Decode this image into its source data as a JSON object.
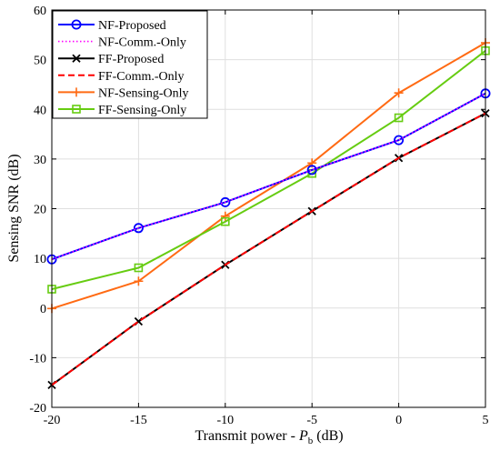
{
  "chart_data": {
    "type": "line",
    "xlabel": "Transmit power - ",
    "xlabel_symbol": "P",
    "xlabel_subscript": "b",
    "xlabel_unit": " (dB)",
    "ylabel": "Sensing SNR (dB)",
    "xlim": [
      -20,
      5
    ],
    "ylim": [
      -20,
      60
    ],
    "xticks": [
      -20,
      -15,
      -10,
      -5,
      0,
      5
    ],
    "yticks": [
      -20,
      -10,
      0,
      10,
      20,
      30,
      40,
      50,
      60
    ],
    "grid": true,
    "legend_position": "top-left",
    "x": [
      -20,
      -15,
      -10,
      -5,
      0,
      5
    ],
    "series": [
      {
        "name": "NF-Proposed",
        "color": "#0000ff",
        "dash": "solid",
        "marker": "circle",
        "values": [
          9.8,
          16.1,
          21.3,
          27.8,
          33.8,
          43.2
        ]
      },
      {
        "name": "NF-Comm.-Only",
        "color": "#ff00ff",
        "dash": "dotted",
        "marker": "none",
        "values": [
          9.8,
          16.1,
          21.3,
          27.8,
          33.8,
          43.2
        ]
      },
      {
        "name": "FF-Proposed",
        "color": "#000000",
        "dash": "solid",
        "marker": "x",
        "values": [
          -15.5,
          -2.7,
          8.7,
          19.5,
          30.2,
          39.2
        ]
      },
      {
        "name": "FF-Comm.-Only",
        "color": "#ff0000",
        "dash": "dashed",
        "marker": "none",
        "values": [
          -15.5,
          -2.7,
          8.7,
          19.5,
          30.2,
          39.2
        ]
      },
      {
        "name": "NF-Sensing-Only",
        "color": "#ff6a13",
        "dash": "solid",
        "marker": "plus",
        "values": [
          -0.1,
          5.4,
          18.5,
          29.2,
          43.3,
          53.4
        ]
      },
      {
        "name": "FF-Sensing-Only",
        "color": "#66cc11",
        "dash": "solid",
        "marker": "square",
        "values": [
          3.8,
          8.1,
          17.4,
          27.1,
          38.3,
          51.8
        ]
      }
    ]
  }
}
